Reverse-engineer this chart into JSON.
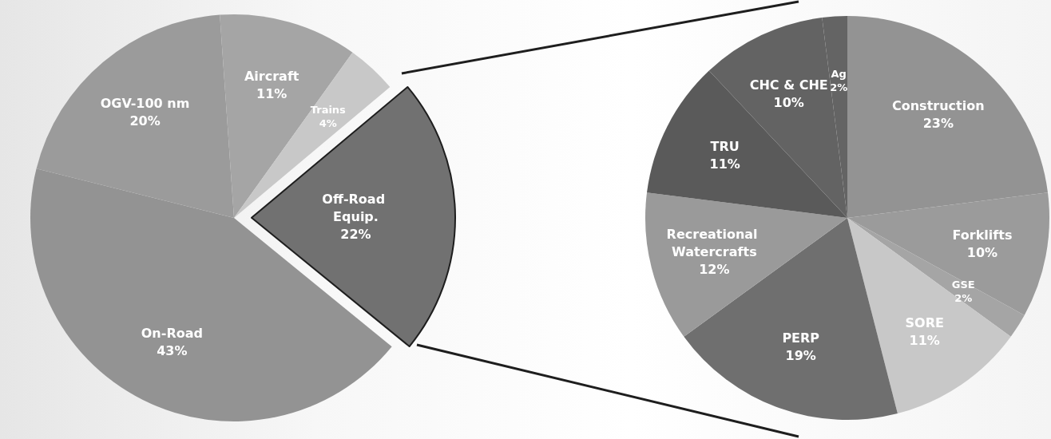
{
  "chart_data": [
    {
      "type": "pie",
      "categories": [
        "Off-Road Equip.",
        "On-Road",
        "OGV-100 nm",
        "Aircraft",
        "Trains"
      ],
      "values": [
        22,
        43,
        20,
        11,
        4
      ],
      "value_labels": [
        "22%",
        "43%",
        "20%",
        "11%",
        "4%"
      ],
      "colors": [
        "#717171",
        "#939393",
        "#9b9b9b",
        "#a5a5a5",
        "#c8c8c8"
      ],
      "legend": false
    },
    {
      "type": "pie",
      "categories": [
        "Construction",
        "Forklifts",
        "GSE",
        "SORE",
        "PERP",
        "Recreational Watercrafts",
        "TRU",
        "CHC & CHE",
        "Ag"
      ],
      "values": [
        23,
        10,
        2,
        11,
        19,
        12,
        11,
        10,
        2
      ],
      "value_labels": [
        "23%",
        "10%",
        "2%",
        "11%",
        "19%",
        "12%",
        "11%",
        "10%",
        "2%"
      ],
      "colors": [
        "#939393",
        "#9b9b9b",
        "#a5a5a5",
        "#c8c8c8",
        "#6f6f6f",
        "#9a9a9a",
        "#5a5a5a",
        "#636363",
        "#646464"
      ],
      "legend": false
    }
  ]
}
